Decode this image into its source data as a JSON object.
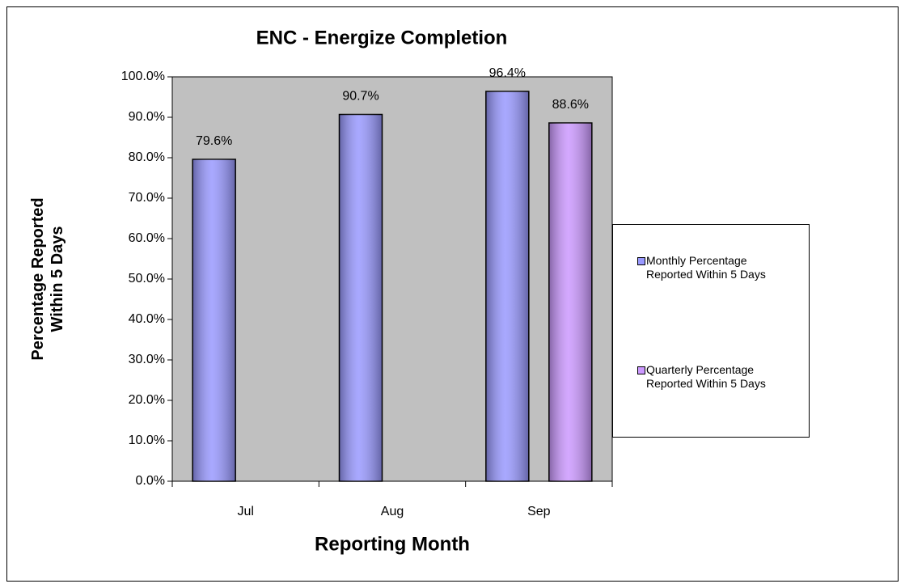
{
  "chart_data": {
    "type": "bar",
    "title": "ENC - Energize Completion",
    "x_label": "Reporting Month",
    "y_label": "Percentage Reported Within 5 Days",
    "categories": [
      "Jul",
      "Aug",
      "Sep"
    ],
    "series": [
      {
        "name": "Monthly Percentage Reported Within 5 Days",
        "color": "#9999ff",
        "values": [
          79.6,
          90.7,
          96.4
        ],
        "value_labels": [
          "79.6%",
          "90.7%",
          "96.4%"
        ]
      },
      {
        "name": "Quarterly Percentage Reported Within 5 Days",
        "color": "#cc99ff",
        "values": [
          null,
          null,
          88.6
        ],
        "value_labels": [
          null,
          null,
          "88.6%"
        ]
      }
    ],
    "ylim": [
      0,
      100
    ],
    "yticks": [
      {
        "value": 0,
        "label": "0.0%"
      },
      {
        "value": 10,
        "label": "10.0%"
      },
      {
        "value": 20,
        "label": "20.0%"
      },
      {
        "value": 30,
        "label": "30.0%"
      },
      {
        "value": 40,
        "label": "40.0%"
      },
      {
        "value": 50,
        "label": "50.0%"
      },
      {
        "value": 60,
        "label": "60.0%"
      },
      {
        "value": 70,
        "label": "70.0%"
      },
      {
        "value": 80,
        "label": "80.0%"
      },
      {
        "value": 90,
        "label": "90.0%"
      },
      {
        "value": 100,
        "label": "100.0%"
      }
    ],
    "plot_background": "#c0c0c0",
    "legend": "right"
  }
}
